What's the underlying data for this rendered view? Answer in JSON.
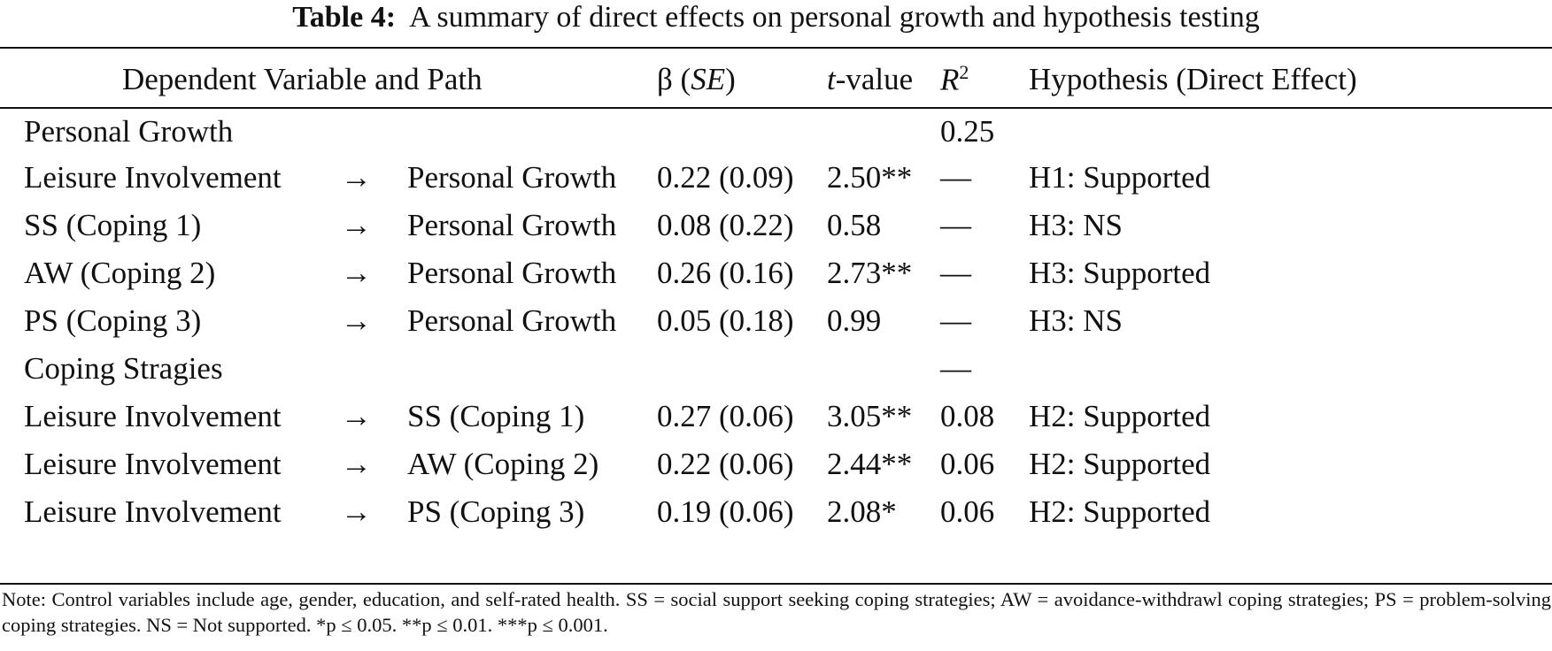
{
  "caption": {
    "label": "Table 4:",
    "title": "A summary of direct effects on personal growth and hypothesis testing"
  },
  "headers": {
    "path": "Dependent Variable and Path",
    "beta_symbol": "β (",
    "beta_se": "SE",
    "beta_close": ")",
    "t_italic": "t",
    "t_rest": "-value",
    "r2_letter": "R",
    "r2_sup": "2",
    "hypothesis": "Hypothesis (Direct Effect)"
  },
  "sections": [
    {
      "label": "Personal Growth",
      "r2": "0.25",
      "rows": [
        {
          "from": "Leisure Involvement",
          "arrow": "→",
          "to": "Personal Growth",
          "beta": "0.22 (0.09)",
          "t": "2.50**",
          "r2": "—",
          "hypothesis": "H1: Supported"
        },
        {
          "from": "SS (Coping 1)",
          "arrow": "→",
          "to": "Personal Growth",
          "beta": "0.08 (0.22)",
          "t": "0.58",
          "r2": "—",
          "hypothesis": "H3: NS"
        },
        {
          "from": "AW (Coping 2)",
          "arrow": "→",
          "to": "Personal Growth",
          "beta": "0.26 (0.16)",
          "t": "2.73**",
          "r2": "—",
          "hypothesis": "H3: Supported"
        },
        {
          "from": "PS (Coping 3)",
          "arrow": "→",
          "to": "Personal Growth",
          "beta": "0.05 (0.18)",
          "t": "0.99",
          "r2": "—",
          "hypothesis": "H3: NS"
        }
      ]
    },
    {
      "label": "Coping Stragies",
      "r2": "—",
      "rows": [
        {
          "from": "Leisure Involvement",
          "arrow": "→",
          "to": "SS (Coping 1)",
          "beta": "0.27 (0.06)",
          "t": "3.05**",
          "r2": "0.08",
          "hypothesis": "H2: Supported"
        },
        {
          "from": "Leisure Involvement",
          "arrow": "→",
          "to": "AW (Coping 2)",
          "beta": "0.22 (0.06)",
          "t": "2.44**",
          "r2": "0.06",
          "hypothesis": "H2: Supported"
        },
        {
          "from": "Leisure Involvement",
          "arrow": "→",
          "to": "PS (Coping 3)",
          "beta": "0.19 (0.06)",
          "t": "2.08*",
          "r2": "0.06",
          "hypothesis": "H2: Supported"
        }
      ]
    }
  ],
  "note": {
    "text": "Note: Control variables include age, gender, education, and self-rated health. SS = social support seeking coping strategies; AW = avoidance-withdrawl coping strategies; PS = problem-solving coping strategies. NS = Not supported.",
    "sig1": "*p ≤ 0.05.",
    "sig2": "**p ≤ 0.01.",
    "sig3": "***p ≤ 0.001."
  }
}
